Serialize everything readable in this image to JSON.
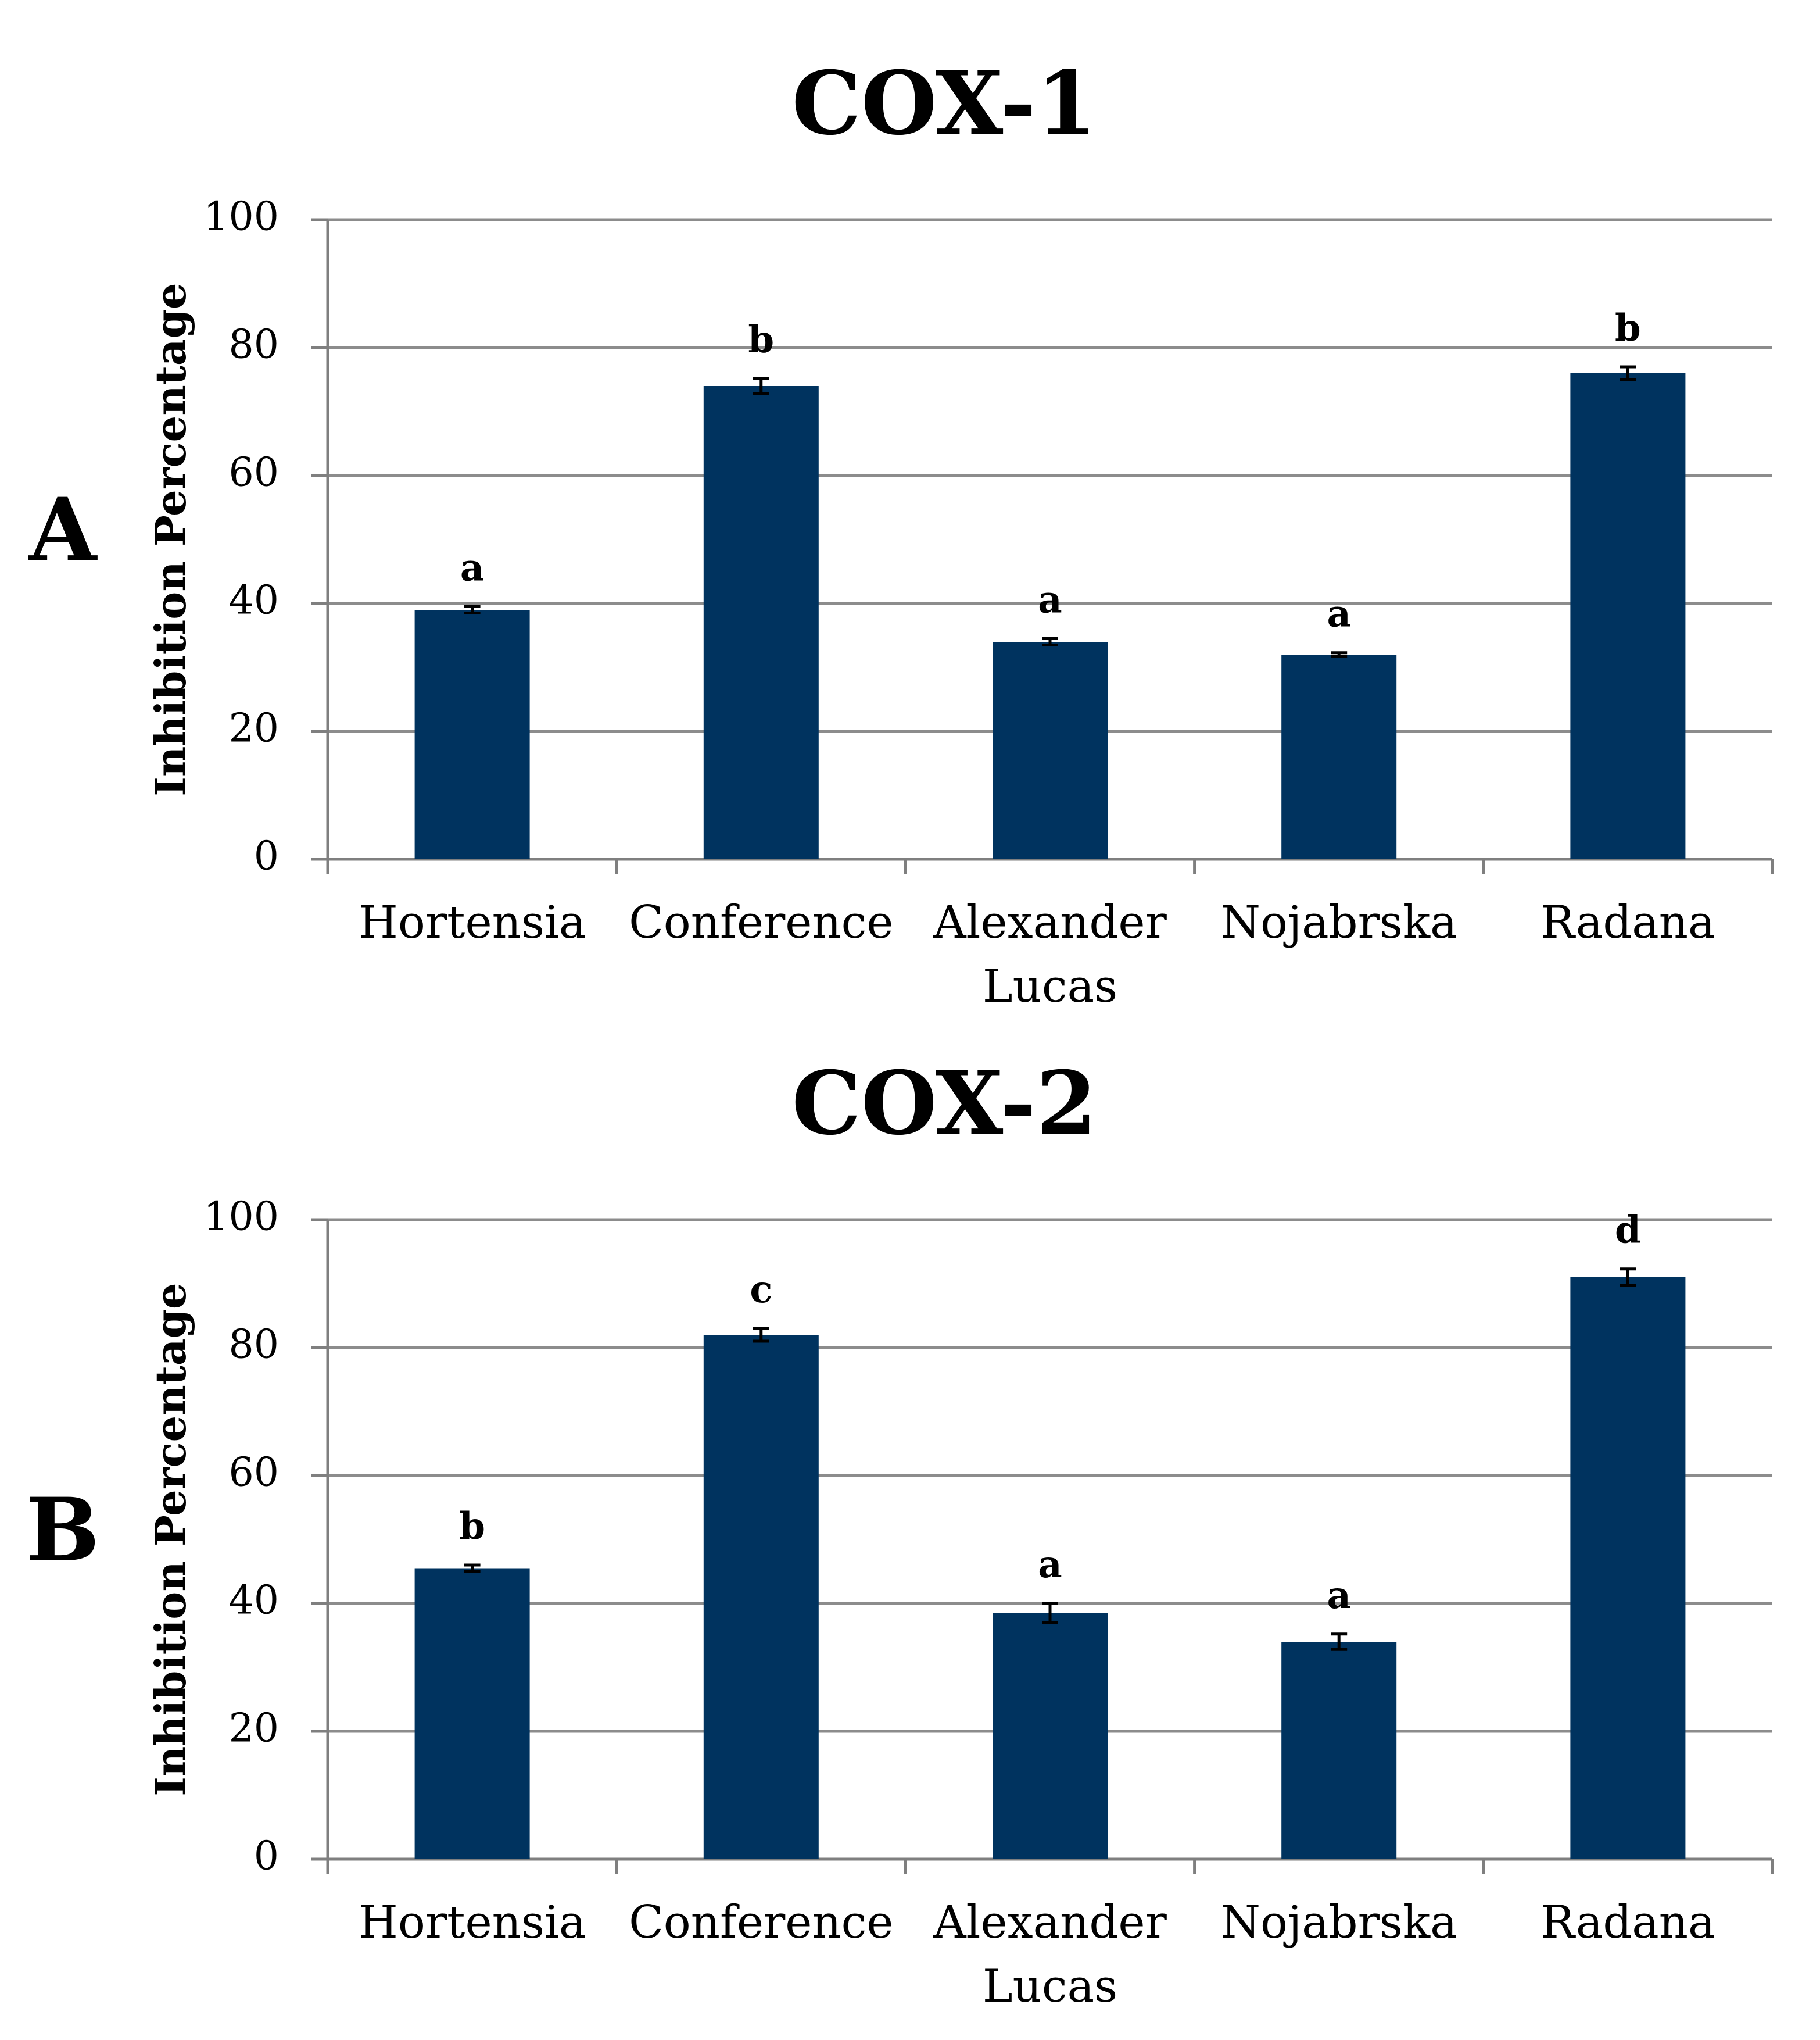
{
  "colors": {
    "bar": "#00335F",
    "grid": "#8C8C8C",
    "axis": "#7F7F7F",
    "text": "#000000"
  },
  "chart_data": [
    {
      "type": "bar",
      "panel": "A",
      "title": "COX-1",
      "xlabel": "",
      "ylabel": "Inhibition Percentage",
      "ylim": [
        0,
        100
      ],
      "yticks": [
        "0",
        "20",
        "40",
        "60",
        "80",
        "100"
      ],
      "grid": true,
      "categories": [
        "Hortensia",
        "Conference",
        "Alexander Lucas",
        "Nojabrska",
        "Radana"
      ],
      "category_lines": [
        [
          "Hortensia"
        ],
        [
          "Conference"
        ],
        [
          "Alexander",
          "Lucas"
        ],
        [
          "Nojabrska"
        ],
        [
          "Radana"
        ]
      ],
      "values": [
        39,
        74,
        34,
        32,
        76
      ],
      "errors": [
        0.5,
        1.2,
        0.5,
        0.3,
        1.0
      ],
      "significance_letters": [
        "a",
        "b",
        "a",
        "a",
        "b"
      ]
    },
    {
      "type": "bar",
      "panel": "B",
      "title": "COX-2",
      "xlabel": "",
      "ylabel": "Inhibition Percentage",
      "ylim": [
        0,
        100
      ],
      "yticks": [
        "0",
        "20",
        "40",
        "60",
        "80",
        "100"
      ],
      "grid": true,
      "categories": [
        "Hortensia",
        "Conference",
        "Alexander Lucas",
        "Nojabrska",
        "Radana"
      ],
      "category_lines": [
        [
          "Hortensia"
        ],
        [
          "Conference"
        ],
        [
          "Alexander",
          "Lucas"
        ],
        [
          "Nojabrska"
        ],
        [
          "Radana"
        ]
      ],
      "values": [
        45.5,
        82,
        38.5,
        34,
        91
      ],
      "errors": [
        0.5,
        1.0,
        1.5,
        1.2,
        1.3
      ],
      "significance_letters": [
        "b",
        "c",
        "a",
        "a",
        "d"
      ]
    }
  ]
}
